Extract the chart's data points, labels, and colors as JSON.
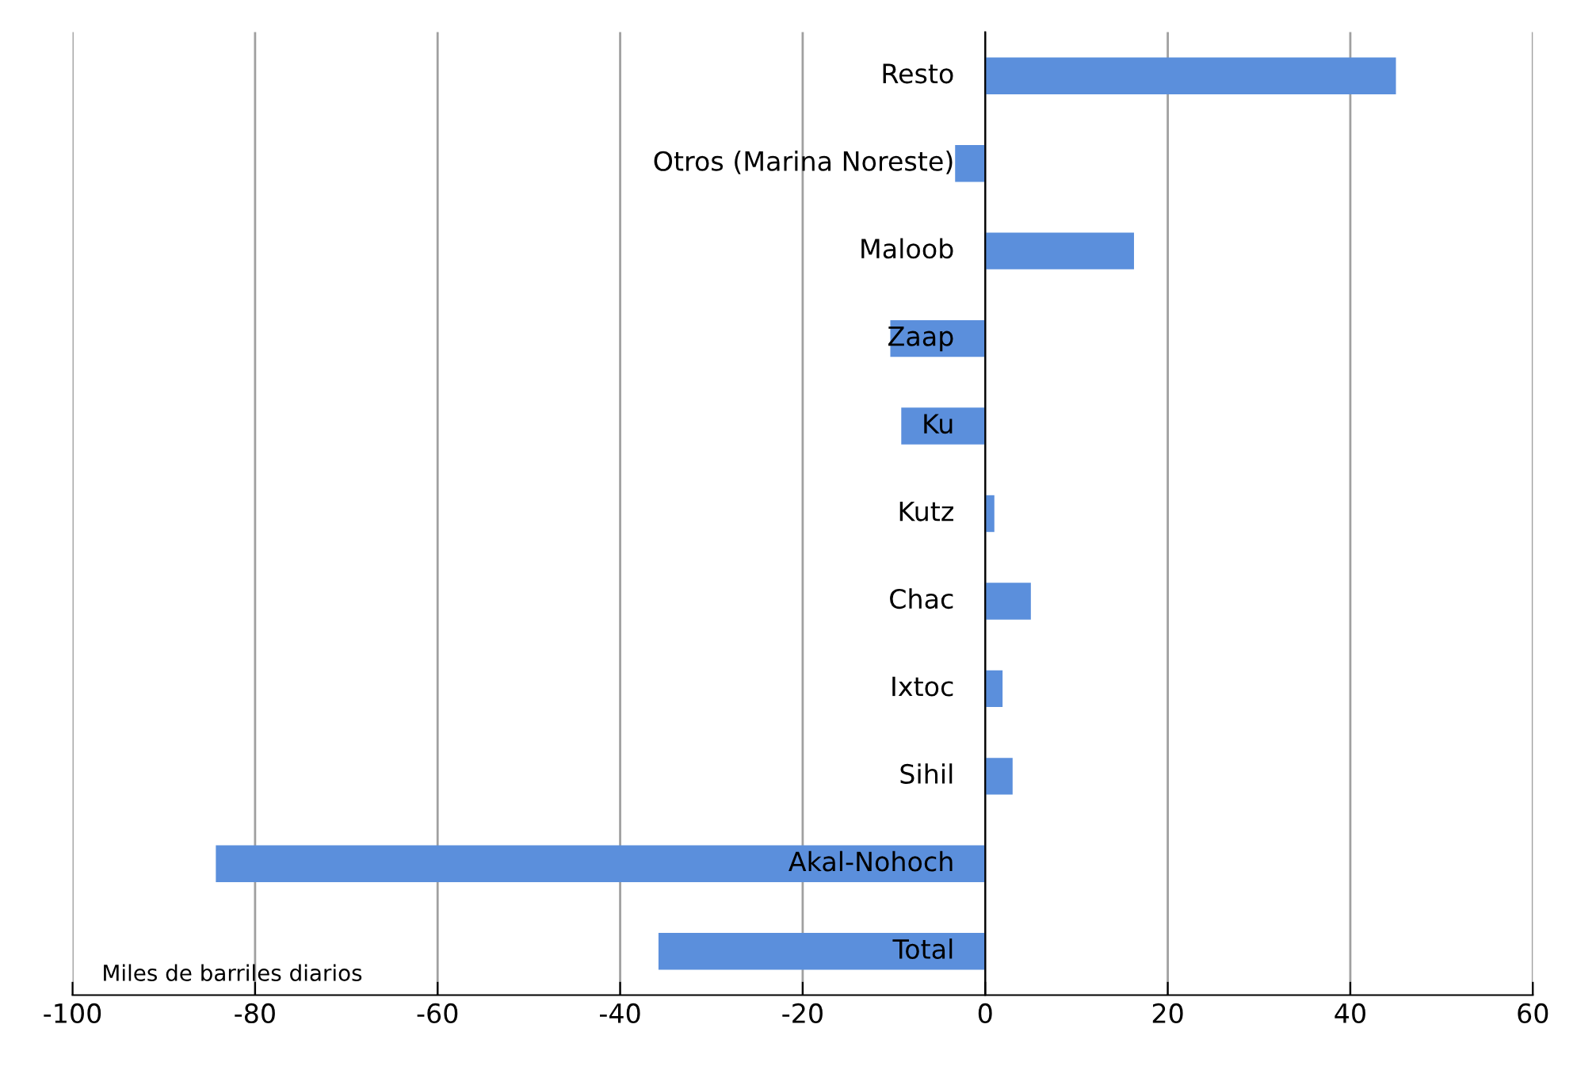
{
  "chart_data": {
    "type": "bar",
    "orientation": "horizontal",
    "categories": [
      "Resto",
      "Otros (Marina Noreste)",
      "Maloob",
      "Zaap",
      "Ku",
      "Kutz",
      "Chac",
      "Ixtoc",
      "Sihil",
      "Akal-Nohoch",
      "Total"
    ],
    "values": [
      45,
      -3.3,
      16.3,
      -10.4,
      -9.2,
      1,
      5,
      1.9,
      3,
      -84.3,
      -35.8
    ],
    "color": "#5b8fdc",
    "xlim": [
      -100,
      60
    ],
    "xticks": [
      -100,
      -80,
      -60,
      -40,
      -20,
      0,
      20,
      40,
      60
    ],
    "grid": "x",
    "annotations": [
      "Miles de barriles diarios"
    ]
  }
}
